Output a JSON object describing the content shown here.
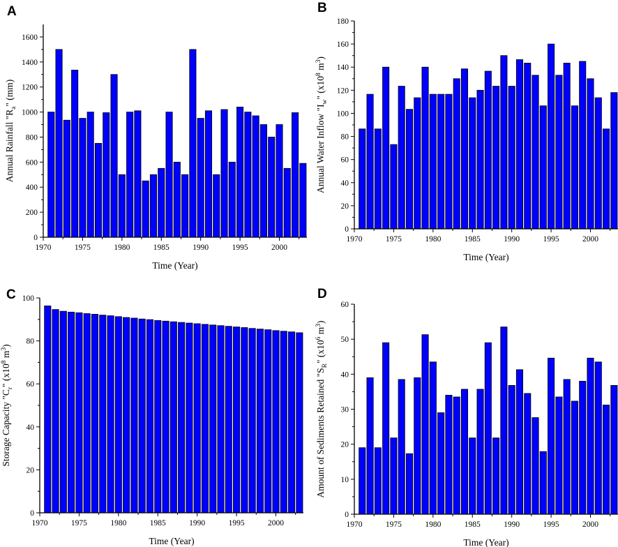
{
  "chart_data": [
    {
      "panel": "A",
      "type": "bar",
      "xlabel": "Time (Year)",
      "ylabel": {
        "pre": "Annual Rainfall \"R",
        "sub": "a",
        "post": "\" (mm)"
      },
      "xlim": [
        1970,
        2003.5
      ],
      "ylim": [
        0,
        1700
      ],
      "xticks": [
        1970,
        1975,
        1980,
        1985,
        1990,
        1995,
        2000
      ],
      "yticks": [
        0,
        200,
        400,
        600,
        800,
        1000,
        1200,
        1400,
        1600
      ],
      "x": [
        1971,
        1972,
        1973,
        1974,
        1975,
        1976,
        1977,
        1978,
        1979,
        1980,
        1981,
        1982,
        1983,
        1984,
        1985,
        1986,
        1987,
        1988,
        1989,
        1990,
        1991,
        1992,
        1993,
        1994,
        1995,
        1996,
        1997,
        1998,
        1999,
        2000,
        2001,
        2002,
        2003
      ],
      "values": [
        1000,
        1500,
        935,
        1335,
        950,
        1000,
        750,
        995,
        1300,
        500,
        1000,
        1010,
        450,
        500,
        550,
        1000,
        600,
        500,
        1500,
        950,
        1010,
        500,
        1020,
        600,
        1040,
        1000,
        970,
        900,
        800,
        900,
        550,
        995,
        590
      ]
    },
    {
      "panel": "B",
      "type": "bar",
      "xlabel": "Time (Year)",
      "ylabel": {
        "pre": "Annual Water Inflow \"I",
        "sub": "w",
        "mid": "\" (x10",
        "sup": "8",
        "post": " m",
        "sup2": "3",
        "end": ")"
      },
      "xlim": [
        1970,
        2003.5
      ],
      "ylim": [
        0,
        180
      ],
      "xticks": [
        1970,
        1975,
        1980,
        1985,
        1990,
        1995,
        2000
      ],
      "yticks": [
        0,
        20,
        40,
        60,
        80,
        100,
        120,
        140,
        160,
        180
      ],
      "x": [
        1971,
        1972,
        1973,
        1974,
        1975,
        1976,
        1977,
        1978,
        1979,
        1980,
        1981,
        1982,
        1983,
        1984,
        1985,
        1986,
        1987,
        1988,
        1989,
        1990,
        1991,
        1992,
        1993,
        1994,
        1995,
        1996,
        1997,
        1998,
        1999,
        2000,
        2001,
        2002,
        2003
      ],
      "values": [
        86.5,
        116.5,
        86.5,
        140,
        73,
        123.5,
        103.5,
        113.5,
        140,
        116.5,
        116.5,
        116.5,
        130,
        138.5,
        113.5,
        120,
        136.5,
        123.5,
        150,
        123.5,
        146.5,
        143.5,
        133,
        106.5,
        160,
        133,
        143.5,
        106.5,
        145,
        130,
        113.5,
        86.5,
        118
      ]
    },
    {
      "panel": "C",
      "type": "bar",
      "xlabel": "Time (Year)",
      "ylabel": {
        "pre": "Storage Capacity \"C",
        "sub": "r",
        "mid": "\" (x10",
        "sup": "8",
        "post": " m",
        "sup2": "3",
        "end": ")"
      },
      "xlim": [
        1970,
        2003.5
      ],
      "ylim": [
        0,
        100
      ],
      "xticks": [
        1970,
        1975,
        1980,
        1985,
        1990,
        1995,
        2000
      ],
      "yticks": [
        0,
        20,
        40,
        60,
        80,
        100
      ],
      "x": [
        1971,
        1972,
        1973,
        1974,
        1975,
        1976,
        1977,
        1978,
        1979,
        1980,
        1981,
        1982,
        1983,
        1984,
        1985,
        1986,
        1987,
        1988,
        1989,
        1990,
        1991,
        1992,
        1993,
        1994,
        1995,
        1996,
        1997,
        1998,
        1999,
        2000,
        2001,
        2002,
        2003
      ],
      "values": [
        96.3,
        94.6,
        93.8,
        93.4,
        93.1,
        92.7,
        92.4,
        92.0,
        91.7,
        91.3,
        90.9,
        90.6,
        90.2,
        89.9,
        89.5,
        89.2,
        88.9,
        88.6,
        88.3,
        88.0,
        87.7,
        87.4,
        87.1,
        86.8,
        86.5,
        86.2,
        85.8,
        85.5,
        85.2,
        84.8,
        84.5,
        84.2,
        83.8
      ]
    },
    {
      "panel": "D",
      "type": "bar",
      "xlabel": "Time (Year)",
      "ylabel": {
        "pre": "Amount of Sediments Retained \"S",
        "sub": "R",
        "mid": "\" (x10",
        "sup": "6",
        "post": " m",
        "sup2": "3",
        "end": ")"
      },
      "xlim": [
        1970,
        2003.5
      ],
      "ylim": [
        0,
        60
      ],
      "xticks": [
        1970,
        1975,
        1980,
        1985,
        1990,
        1995,
        2000
      ],
      "yticks": [
        0,
        10,
        20,
        30,
        40,
        50,
        60
      ],
      "x": [
        1971,
        1972,
        1973,
        1974,
        1975,
        1976,
        1977,
        1978,
        1979,
        1980,
        1981,
        1982,
        1983,
        1984,
        1985,
        1986,
        1987,
        1988,
        1989,
        1990,
        1991,
        1992,
        1993,
        1994,
        1995,
        1996,
        1997,
        1998,
        1999,
        2000,
        2001,
        2002,
        2003
      ],
      "values": [
        19,
        39,
        19,
        49,
        21.8,
        38.5,
        17.3,
        39,
        51.3,
        43.5,
        29,
        34,
        33.5,
        35.7,
        21.8,
        35.7,
        49,
        21.8,
        53.5,
        36.8,
        41.3,
        34.5,
        27.6,
        17.9,
        44.6,
        33.5,
        38.5,
        32.3,
        38,
        44.6,
        43.5,
        31.2,
        36.8
      ]
    }
  ],
  "colors": {
    "bar_fill": "#0000ff",
    "bar_stroke": "#000000",
    "axis": "#000000"
  }
}
